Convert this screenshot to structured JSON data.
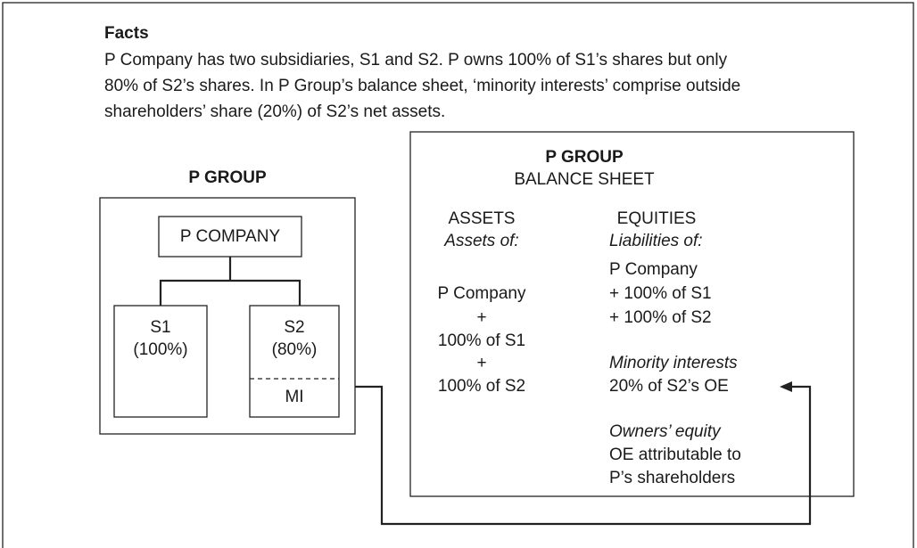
{
  "facts": {
    "title": "Facts",
    "lines": [
      "P Company has two subsidiaries, S1 and S2. P owns 100% of S1’s shares but only",
      "80% of S2’s shares. In P Group’s balance sheet, ‘minority interests’ comprise outside",
      "shareholders’ share (20%) of S2’s net assets."
    ]
  },
  "group": {
    "title": "P GROUP",
    "parent": "P COMPANY",
    "s1": {
      "name": "S1",
      "share": "(100%)"
    },
    "s2": {
      "name": "S2",
      "share": "(80%)",
      "mi": "MI"
    }
  },
  "balance_sheet": {
    "title": "P GROUP",
    "subtitle": "BALANCE SHEET",
    "assets": {
      "heading": "ASSETS",
      "intro": "Assets of:",
      "items": [
        "P Company",
        "+",
        "100% of S1",
        "+",
        "100% of S2"
      ]
    },
    "equities": {
      "heading": "EQUITIES",
      "intro": "Liabilities of:",
      "items": [
        "P Company",
        "+ 100% of S1",
        "+ 100% of S2"
      ],
      "minority_heading": "Minority interests",
      "minority_text": "20% of S2’s OE",
      "owners_heading": "Owners’ equity",
      "owners_lines": [
        "OE attributable to",
        "P’s shareholders"
      ]
    }
  }
}
